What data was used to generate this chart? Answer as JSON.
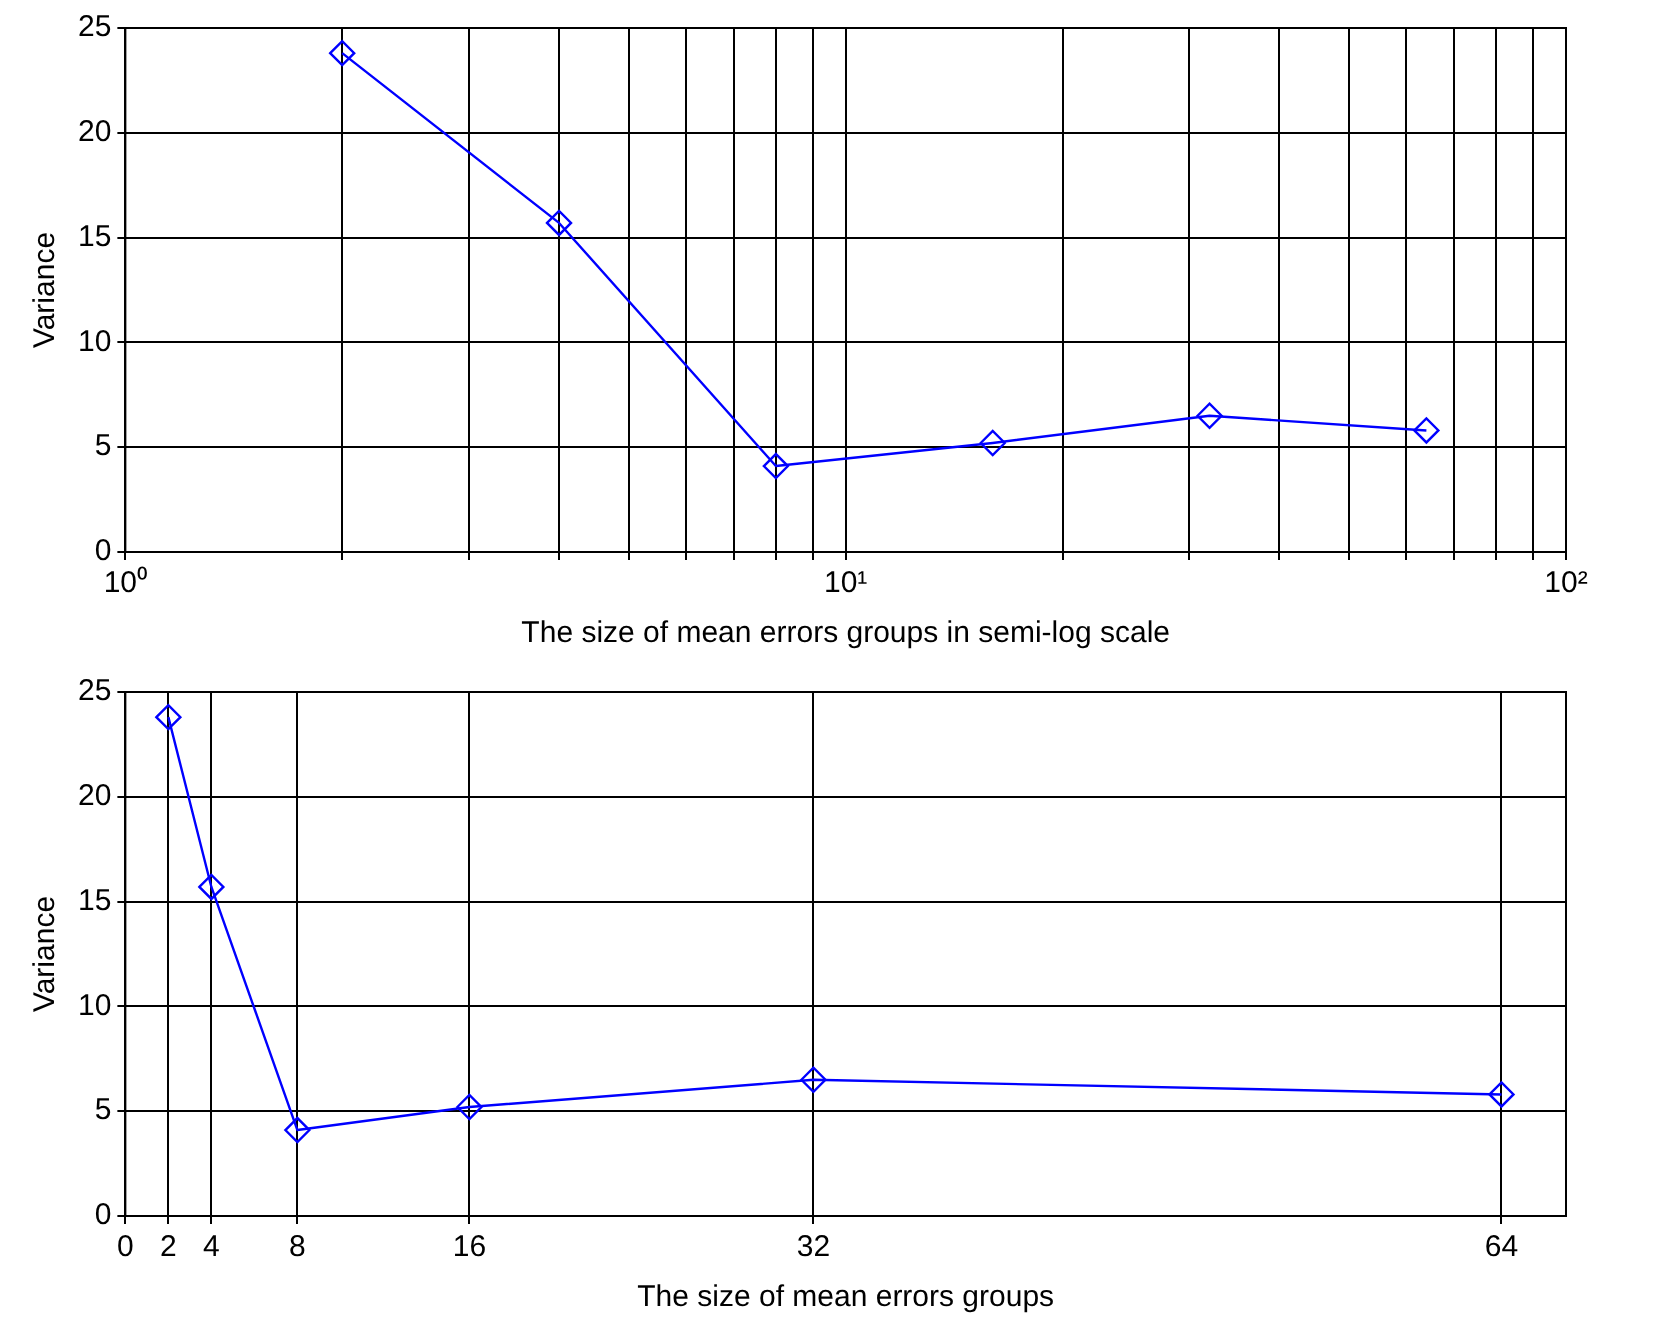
{
  "chart_data": [
    {
      "type": "line",
      "xlabel": "The size of mean errors groups in semi-log scale",
      "ylabel": "Variance",
      "log": "x",
      "grid": true,
      "marker": "diamond",
      "line_style": "solid",
      "x": [
        2,
        4,
        8,
        16,
        32,
        64
      ],
      "series": [
        {
          "color": "#0000ff",
          "values": [
            23.8,
            15.7,
            4.1,
            5.2,
            6.5,
            5.8
          ]
        }
      ],
      "xlim": [
        1,
        100
      ],
      "ylim": [
        0,
        25
      ],
      "xticks": [
        {
          "value": 1,
          "label": "10⁰"
        },
        {
          "value": 2,
          "label": null
        },
        {
          "value": 3,
          "label": null
        },
        {
          "value": 4,
          "label": null
        },
        {
          "value": 5,
          "label": null
        },
        {
          "value": 6,
          "label": null
        },
        {
          "value": 7,
          "label": null
        },
        {
          "value": 8,
          "label": null
        },
        {
          "value": 9,
          "label": null
        },
        {
          "value": 10,
          "label": "10¹"
        },
        {
          "value": 20,
          "label": null
        },
        {
          "value": 30,
          "label": null
        },
        {
          "value": 40,
          "label": null
        },
        {
          "value": 50,
          "label": null
        },
        {
          "value": 60,
          "label": null
        },
        {
          "value": 70,
          "label": null
        },
        {
          "value": 80,
          "label": null
        },
        {
          "value": 90,
          "label": null
        },
        {
          "value": 100,
          "label": "10²"
        }
      ],
      "yticks": [
        0,
        5,
        10,
        15,
        20,
        25
      ]
    },
    {
      "type": "line",
      "xlabel": "The size of mean errors groups",
      "ylabel": "Variance",
      "grid": true,
      "marker": "diamond",
      "line_style": "solid",
      "x": [
        2,
        4,
        8,
        16,
        32,
        64
      ],
      "series": [
        {
          "color": "#0000ff",
          "values": [
            23.8,
            15.7,
            4.1,
            5.2,
            6.5,
            5.8
          ]
        }
      ],
      "xlim": [
        0,
        67
      ],
      "ylim": [
        0,
        25
      ],
      "xticks": [
        0,
        2,
        4,
        8,
        16,
        32,
        64
      ],
      "yticks": [
        0,
        5,
        10,
        15,
        20,
        25
      ]
    }
  ]
}
